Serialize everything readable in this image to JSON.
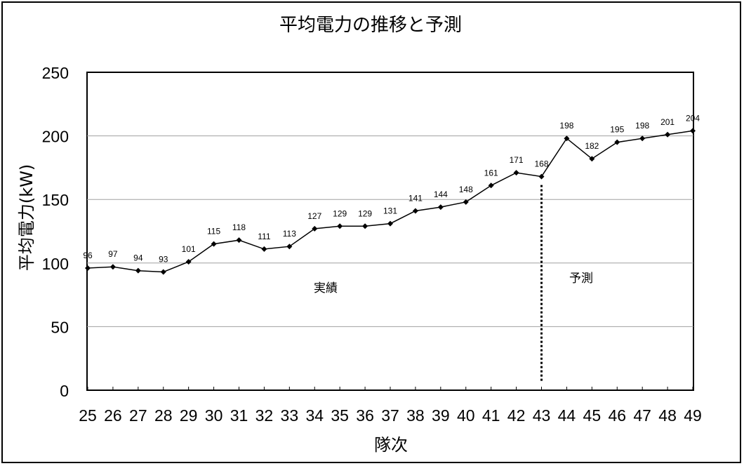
{
  "chart_data": {
    "type": "line",
    "title": "平均電力の推移と予測",
    "xlabel": "隊次",
    "ylabel": "平均電力(kW)",
    "ylim": [
      0,
      250
    ],
    "yticks": [
      "0",
      "50",
      "100",
      "150",
      "200",
      "250"
    ],
    "grid": true,
    "categories": [
      "25",
      "26",
      "27",
      "28",
      "29",
      "30",
      "31",
      "32",
      "33",
      "34",
      "35",
      "36",
      "37",
      "38",
      "39",
      "40",
      "41",
      "42",
      "43",
      "44",
      "45",
      "46",
      "47",
      "48",
      "49"
    ],
    "series": [
      {
        "values": [
          96,
          97,
          94,
          93,
          101,
          115,
          118,
          111,
          113,
          127,
          129,
          129,
          131,
          141,
          144,
          148,
          161,
          171,
          168,
          198,
          182,
          195,
          198,
          201,
          204
        ]
      }
    ],
    "data_labels": [
      "96",
      "97",
      "94",
      "93",
      "101",
      "115",
      "118",
      "111",
      "113",
      "127",
      "129",
      "129",
      "131",
      "141",
      "144",
      "148",
      "161",
      "171",
      "168",
      "198",
      "182",
      "195",
      "198",
      "201",
      "204"
    ],
    "divider_after_category": "43",
    "annotations": [
      {
        "text": "実績",
        "region": "actual"
      },
      {
        "text": "予測",
        "region": "forecast"
      }
    ],
    "colors": {
      "line": "#000000",
      "grid": "#a0a0a0"
    }
  }
}
